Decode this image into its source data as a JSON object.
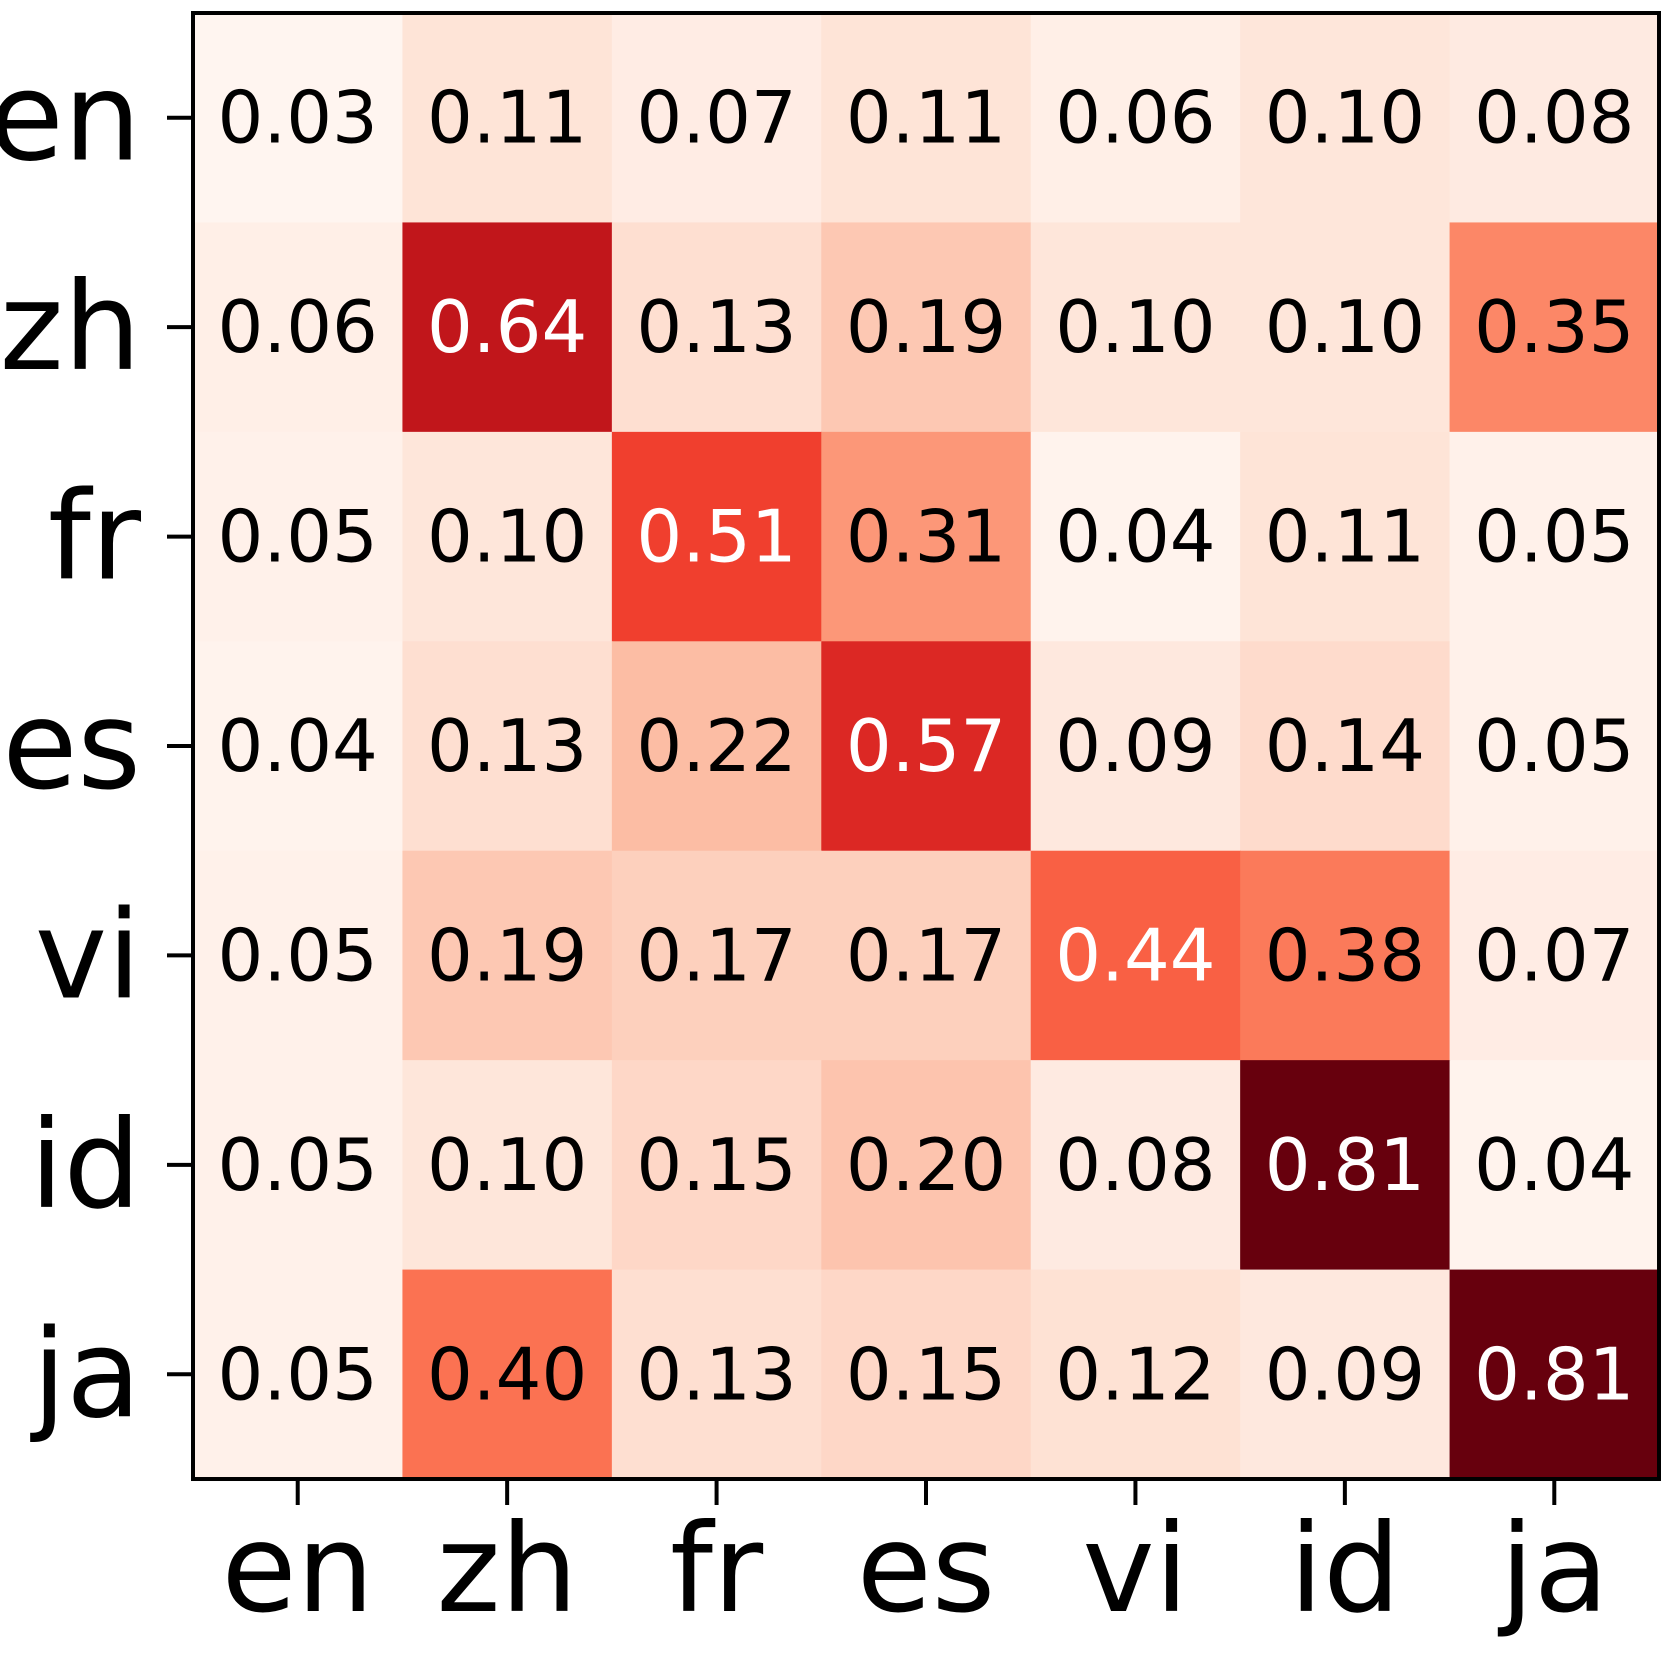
{
  "chart_data": {
    "type": "heatmap",
    "title": "",
    "xlabel": "",
    "ylabel": "",
    "x_labels": [
      "en",
      "zh",
      "fr",
      "es",
      "vi",
      "id",
      "ja"
    ],
    "y_labels": [
      "en",
      "zh",
      "fr",
      "es",
      "vi",
      "id",
      "ja"
    ],
    "values": [
      [
        0.03,
        0.11,
        0.07,
        0.11,
        0.06,
        0.1,
        0.08
      ],
      [
        0.06,
        0.64,
        0.13,
        0.19,
        0.1,
        0.1,
        0.35
      ],
      [
        0.05,
        0.1,
        0.51,
        0.31,
        0.04,
        0.11,
        0.05
      ],
      [
        0.04,
        0.13,
        0.22,
        0.57,
        0.09,
        0.14,
        0.05
      ],
      [
        0.05,
        0.19,
        0.17,
        0.17,
        0.44,
        0.38,
        0.07
      ],
      [
        0.05,
        0.1,
        0.15,
        0.2,
        0.08,
        0.81,
        0.04
      ],
      [
        0.05,
        0.4,
        0.13,
        0.15,
        0.12,
        0.09,
        0.81
      ]
    ],
    "colormap": "Reds",
    "color_range": [
      0.03,
      0.81
    ],
    "grid": false
  }
}
